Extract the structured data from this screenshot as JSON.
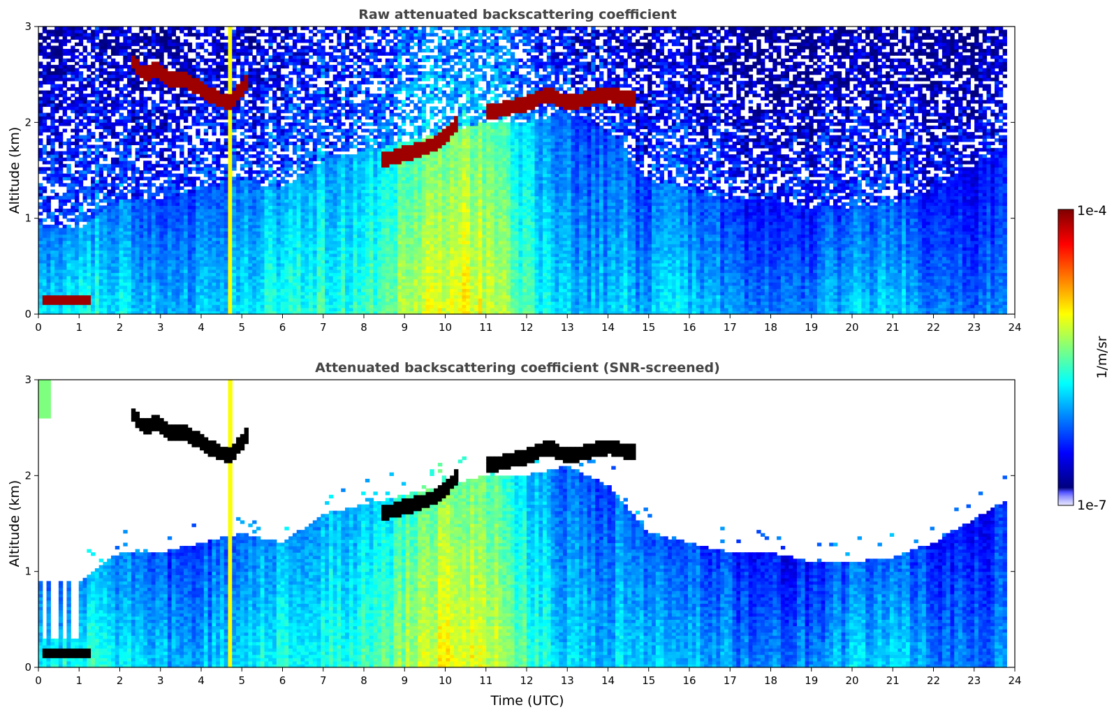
{
  "chart_data": [
    {
      "type": "heatmap",
      "title": "Raw attenuated backscattering coefficient",
      "xlabel": "",
      "ylabel": "Altitude (km)",
      "xlim": [
        0,
        24
      ],
      "ylim": [
        0,
        3
      ],
      "x_ticks": [
        "0",
        "1",
        "2",
        "3",
        "4",
        "5",
        "6",
        "7",
        "8",
        "9",
        "10",
        "11",
        "12",
        "13",
        "14",
        "15",
        "16",
        "17",
        "18",
        "19",
        "20",
        "21",
        "22",
        "23",
        "24"
      ],
      "y_ticks": [
        "0",
        "1",
        "2",
        "3"
      ],
      "data_extent_x": [
        0,
        23.8
      ],
      "screened": false,
      "grid": false,
      "features": {
        "aerosol_layer_top_km": [
          [
            0,
            0.9
          ],
          [
            1,
            0.9
          ],
          [
            2,
            1.2
          ],
          [
            3,
            1.2
          ],
          [
            4,
            1.3
          ],
          [
            5,
            1.4
          ],
          [
            6,
            1.3
          ],
          [
            7,
            1.6
          ],
          [
            8,
            1.7
          ],
          [
            9,
            1.8
          ],
          [
            10,
            1.9
          ],
          [
            11,
            2.0
          ],
          [
            12,
            2.0
          ],
          [
            13,
            2.1
          ],
          [
            14,
            1.9
          ],
          [
            15,
            1.4
          ],
          [
            16,
            1.3
          ],
          [
            17,
            1.2
          ],
          [
            18,
            1.2
          ],
          [
            19,
            1.1
          ],
          [
            20,
            1.1
          ],
          [
            21,
            1.15
          ],
          [
            22,
            1.3
          ],
          [
            23,
            1.55
          ],
          [
            23.8,
            1.75
          ]
        ],
        "cloud_segments": [
          [
            [
              2.3,
              2.65
            ],
            [
              2.6,
              2.5
            ],
            [
              2.9,
              2.55
            ],
            [
              3.2,
              2.45
            ],
            [
              3.6,
              2.45
            ],
            [
              4.0,
              2.35
            ],
            [
              4.4,
              2.25
            ],
            [
              4.7,
              2.2
            ],
            [
              5.0,
              2.35
            ],
            [
              5.2,
              2.45
            ]
          ],
          [
            [
              8.4,
              1.6
            ],
            [
              8.8,
              1.65
            ],
            [
              9.2,
              1.7
            ],
            [
              9.6,
              1.75
            ],
            [
              10.0,
              1.85
            ],
            [
              10.3,
              2.0
            ]
          ],
          [
            [
              11.0,
              2.1
            ],
            [
              11.5,
              2.15
            ],
            [
              12.0,
              2.2
            ],
            [
              12.5,
              2.3
            ],
            [
              13.0,
              2.2
            ],
            [
              13.5,
              2.25
            ],
            [
              14.0,
              2.3
            ],
            [
              14.5,
              2.25
            ],
            [
              14.7,
              2.25
            ]
          ]
        ],
        "low_cloud": {
          "x": [
            0.05,
            1.3
          ],
          "y_km": 0.16
        },
        "precip_column_x": 4.7
      }
    },
    {
      "type": "heatmap",
      "title": "Attenuated backscattering coefficient (SNR-screened)",
      "xlabel": "Time (UTC)",
      "ylabel": "Altitude (km)",
      "xlim": [
        0,
        24
      ],
      "ylim": [
        0,
        3
      ],
      "x_ticks": [
        "0",
        "1",
        "2",
        "3",
        "4",
        "5",
        "6",
        "7",
        "8",
        "9",
        "10",
        "11",
        "12",
        "13",
        "14",
        "15",
        "16",
        "17",
        "18",
        "19",
        "20",
        "21",
        "22",
        "23",
        "24"
      ],
      "y_ticks": [
        "0",
        "1",
        "2",
        "3"
      ],
      "data_extent_x": [
        0,
        23.8
      ],
      "screened": true,
      "grid": false
    }
  ],
  "colorbar": {
    "label": "1/m/sr",
    "max_label": "1e-4",
    "min_label": "1e-7",
    "scale": "log",
    "colormap": "jet",
    "stops": [
      "#00007f",
      "#0000ff",
      "#007fff",
      "#00ffff",
      "#7fff7f",
      "#ffff00",
      "#ff7f00",
      "#ff0000",
      "#7f0000"
    ],
    "low_stops": [
      "#e8e8ff",
      "#c0c0ff",
      "#9090ff",
      "#5050ff"
    ]
  }
}
